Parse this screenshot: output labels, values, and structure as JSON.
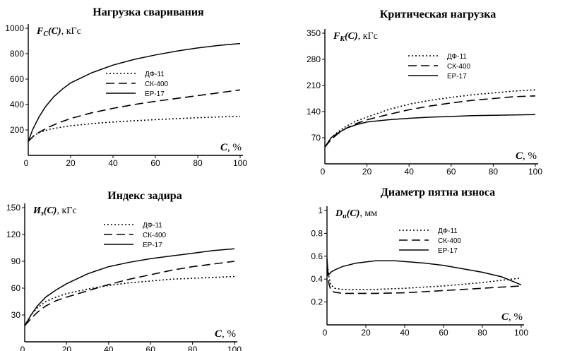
{
  "chart_data": [
    {
      "type": "line",
      "title": "Нагрузка сваривания",
      "ylabel": {
        "symbol": "F",
        "sub": "C",
        "arg": "(C)",
        "unit": ", кГс"
      },
      "xlabel": {
        "symbol": "C",
        "unit": ", %"
      },
      "xlim": [
        0,
        100
      ],
      "ylim": [
        0,
        1000
      ],
      "xticks": [
        "0",
        "20",
        "40",
        "60",
        "80",
        "100"
      ],
      "yticks": [
        "200",
        "400",
        "600",
        "800",
        "1000"
      ],
      "ytick_values": [
        200,
        400,
        600,
        800,
        1000
      ],
      "legend": [
        "ДФ-11",
        "СК-400",
        "ЕР-17"
      ],
      "series": [
        {
          "name": "ДФ-11",
          "style": "dotted",
          "x": [
            0,
            3,
            6,
            10,
            15,
            20,
            30,
            40,
            50,
            60,
            70,
            80,
            90,
            100
          ],
          "y": [
            110,
            160,
            185,
            205,
            220,
            232,
            250,
            262,
            272,
            281,
            289,
            296,
            302,
            308
          ]
        },
        {
          "name": "СК-400",
          "style": "dashed",
          "x": [
            0,
            3,
            6,
            10,
            15,
            20,
            30,
            40,
            50,
            60,
            70,
            80,
            90,
            100
          ],
          "y": [
            110,
            160,
            190,
            225,
            260,
            290,
            335,
            370,
            400,
            425,
            448,
            470,
            492,
            515
          ]
        },
        {
          "name": "ЕР-17",
          "style": "solid",
          "x": [
            0,
            2,
            5,
            8,
            12,
            16,
            20,
            30,
            40,
            50,
            60,
            70,
            80,
            90,
            100
          ],
          "y": [
            110,
            200,
            300,
            380,
            460,
            520,
            570,
            650,
            710,
            755,
            790,
            820,
            845,
            865,
            880
          ]
        }
      ]
    },
    {
      "type": "line",
      "title": "Критическая нагрузка",
      "ylabel": {
        "symbol": "F",
        "sub": "K",
        "arg": "(C)",
        "unit": ", кГс"
      },
      "xlabel": {
        "symbol": "C",
        "unit": ", %"
      },
      "xlim": [
        0,
        100
      ],
      "ylim": [
        0,
        350
      ],
      "xticks": [
        "0",
        "20",
        "40",
        "60",
        "80",
        "100"
      ],
      "yticks": [
        "70",
        "140",
        "210",
        "280",
        "350"
      ],
      "ytick_values": [
        70,
        140,
        210,
        280,
        350
      ],
      "legend": [
        "ДФ-11",
        "СК-400",
        "ЕР-17"
      ],
      "series": [
        {
          "name": "ДФ-11",
          "style": "dotted",
          "x": [
            0,
            3,
            6,
            10,
            15,
            20,
            30,
            40,
            50,
            60,
            70,
            80,
            90,
            100
          ],
          "y": [
            45,
            70,
            85,
            100,
            115,
            125,
            145,
            160,
            170,
            178,
            185,
            190,
            195,
            198
          ]
        },
        {
          "name": "СК-400",
          "style": "dashed",
          "x": [
            0,
            3,
            6,
            10,
            15,
            20,
            30,
            40,
            50,
            60,
            70,
            80,
            90,
            100
          ],
          "y": [
            45,
            65,
            80,
            95,
            108,
            118,
            132,
            145,
            155,
            163,
            170,
            175,
            180,
            182
          ]
        },
        {
          "name": "ЕР-17",
          "style": "solid",
          "x": [
            0,
            3,
            6,
            10,
            15,
            20,
            30,
            40,
            50,
            60,
            70,
            80,
            90,
            100
          ],
          "y": [
            45,
            70,
            82,
            95,
            105,
            112,
            118,
            122,
            125,
            127,
            129,
            130,
            131,
            132
          ]
        }
      ]
    },
    {
      "type": "line",
      "title": "Индекс задира",
      "ylabel": {
        "symbol": "И",
        "sub": "з",
        "arg": "(C)",
        "unit": ", кГс"
      },
      "xlabel": {
        "symbol": "C",
        "unit": ", %"
      },
      "xlim": [
        0,
        100
      ],
      "ylim": [
        0,
        150
      ],
      "xticks": [
        "0",
        "20",
        "40",
        "60",
        "80",
        "100"
      ],
      "yticks": [
        "30",
        "60",
        "90",
        "120",
        "150"
      ],
      "ytick_values": [
        30,
        60,
        90,
        120,
        150
      ],
      "legend": [
        "ДФ-11",
        "СК-400",
        "ЕР-17"
      ],
      "series": [
        {
          "name": "ДФ-11",
          "style": "dotted",
          "x": [
            0,
            3,
            6,
            10,
            15,
            20,
            30,
            40,
            50,
            60,
            70,
            80,
            90,
            100
          ],
          "y": [
            18,
            30,
            38,
            45,
            50,
            54,
            59,
            63,
            66,
            68,
            70,
            71,
            72,
            73
          ]
        },
        {
          "name": "СК-400",
          "style": "dashed",
          "x": [
            0,
            3,
            6,
            10,
            15,
            20,
            30,
            40,
            50,
            60,
            70,
            80,
            90,
            100
          ],
          "y": [
            18,
            26,
            33,
            40,
            46,
            50,
            57,
            64,
            70,
            75,
            80,
            84,
            87,
            90
          ]
        },
        {
          "name": "ЕР-17",
          "style": "solid",
          "x": [
            0,
            3,
            6,
            10,
            15,
            20,
            30,
            40,
            50,
            60,
            70,
            80,
            90,
            100
          ],
          "y": [
            18,
            30,
            40,
            50,
            58,
            65,
            76,
            84,
            89,
            93,
            96,
            99,
            102,
            104
          ]
        }
      ]
    },
    {
      "type": "line",
      "title": "Диаметр пятна износа",
      "ylabel": {
        "symbol": "D",
        "sub": "и",
        "arg": "(C)",
        "unit": ", мм"
      },
      "xlabel": {
        "symbol": "C",
        "unit": ", %"
      },
      "xlim": [
        0,
        100
      ],
      "ylim": [
        0,
        1
      ],
      "xticks": [
        "0",
        "20",
        "40",
        "60",
        "80",
        "100"
      ],
      "yticks": [
        "0.2",
        "0.4",
        "0.6",
        "0.8",
        "1"
      ],
      "ytick_values": [
        0.2,
        0.4,
        0.6,
        0.8,
        1.0
      ],
      "legend": [
        "ДФ-11",
        "СК-400",
        "ЕР-17"
      ],
      "series": [
        {
          "name": "ДФ-11",
          "style": "dotted",
          "x": [
            0,
            1,
            2,
            4,
            8,
            15,
            25,
            40,
            50,
            60,
            70,
            80,
            90,
            100
          ],
          "y": [
            0.55,
            0.42,
            0.35,
            0.32,
            0.31,
            0.31,
            0.31,
            0.32,
            0.33,
            0.34,
            0.355,
            0.37,
            0.39,
            0.41
          ]
        },
        {
          "name": "СК-400",
          "style": "dashed",
          "x": [
            0,
            1,
            2,
            4,
            8,
            15,
            25,
            40,
            50,
            60,
            70,
            80,
            90,
            100
          ],
          "y": [
            0.5,
            0.36,
            0.3,
            0.285,
            0.275,
            0.275,
            0.275,
            0.28,
            0.29,
            0.3,
            0.31,
            0.32,
            0.33,
            0.34
          ]
        },
        {
          "name": "ЕР-17",
          "style": "solid",
          "x": [
            0,
            0.5,
            1,
            2,
            4,
            8,
            15,
            25,
            35,
            50,
            60,
            70,
            80,
            90,
            100
          ],
          "y": [
            0.58,
            0.45,
            0.44,
            0.46,
            0.48,
            0.51,
            0.54,
            0.56,
            0.56,
            0.54,
            0.52,
            0.49,
            0.46,
            0.42,
            0.35
          ]
        }
      ]
    }
  ]
}
